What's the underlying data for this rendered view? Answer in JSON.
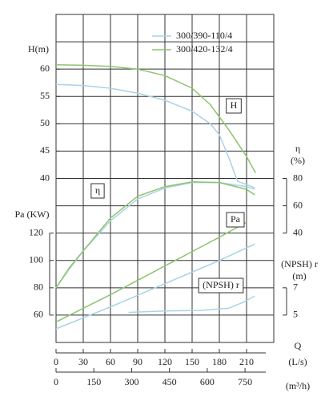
{
  "chart_data": {
    "type": "line",
    "legend": [
      {
        "name": "300/390-110/4",
        "color": "#a9d3e4"
      },
      {
        "name": "300/420-132/4",
        "color": "#8dc46c"
      }
    ],
    "xlabel": "Q",
    "xunit": "(L/s)",
    "xlim": [
      0,
      240
    ],
    "xticks": [
      0,
      30,
      60,
      90,
      120,
      150,
      180,
      210
    ],
    "x2unit": "(m³/h)",
    "x2lim": [
      0,
      864
    ],
    "x2ticks": [
      0,
      150,
      300,
      450,
      600,
      750
    ],
    "panels": [
      {
        "box": "H",
        "ylabel": "H(m)",
        "side": "left",
        "ylim": [
          10,
          70
        ],
        "yticks": [
          40,
          45,
          50,
          55,
          60
        ],
        "series": [
          {
            "color": "#a9d3e4",
            "x": [
              0,
              30,
              60,
              90,
              120,
              150,
              170,
              180,
              190,
              200,
              219
            ],
            "values": [
              57.2,
              57,
              56.5,
              55.6,
              54.3,
              52.3,
              50,
              48,
              44,
              39.5,
              38.3
            ]
          },
          {
            "color": "#8dc46c",
            "x": [
              0,
              30,
              60,
              90,
              120,
              150,
              170,
              190,
              210,
              220
            ],
            "values": [
              60.8,
              60.7,
              60.5,
              60,
              58.8,
              56.5,
              53.5,
              49,
              44,
              41
            ]
          }
        ]
      },
      {
        "box": "η",
        "ylabel": "η",
        "yunit": "(%)",
        "side": "right",
        "ylim": [
          -40,
          200
        ],
        "yticks": [
          40,
          60,
          80
        ],
        "series": [
          {
            "color": "#a9d3e4",
            "x": [
              0,
              15,
              30,
              60,
              90,
              120,
              150,
              180,
              210,
              219
            ],
            "values": [
              0,
              14,
              27,
              49,
              65,
              73,
              77,
              77,
              74,
              72
            ]
          },
          {
            "color": "#8dc46c",
            "x": [
              0,
              15,
              30,
              60,
              90,
              120,
              150,
              180,
              210,
              219
            ],
            "values": [
              0,
              15,
              27,
              51,
              67,
              74,
              77.5,
              77,
              72,
              68
            ]
          }
        ]
      },
      {
        "box": "Pa",
        "ylabel": "Pa (KW)",
        "side": "left",
        "ylim": [
          40,
          280
        ],
        "yticks": [
          60,
          80,
          100,
          120
        ],
        "series": [
          {
            "color": "#a9d3e4",
            "x": [
              0,
              60,
              120,
              180,
              219
            ],
            "values": [
              50,
              66,
              83,
              100,
              112
            ]
          },
          {
            "color": "#8dc46c",
            "x": [
              0,
              60,
              120,
              180,
              210
            ],
            "values": [
              55,
              75,
              96,
              117,
              128
            ]
          }
        ]
      },
      {
        "box": "(NPSH) r",
        "ylabel": "(NPSH) r",
        "yunit": "(m)",
        "side": "right",
        "ylim": [
          3,
          27
        ],
        "yticks": [
          5,
          7
        ],
        "series": [
          {
            "color": "#a9d3e4",
            "x": [
              80,
              120,
              160,
              190,
              205,
              219
            ],
            "values": [
              5.2,
              5.3,
              5.35,
              5.5,
              5.9,
              6.4
            ]
          }
        ]
      }
    ]
  }
}
